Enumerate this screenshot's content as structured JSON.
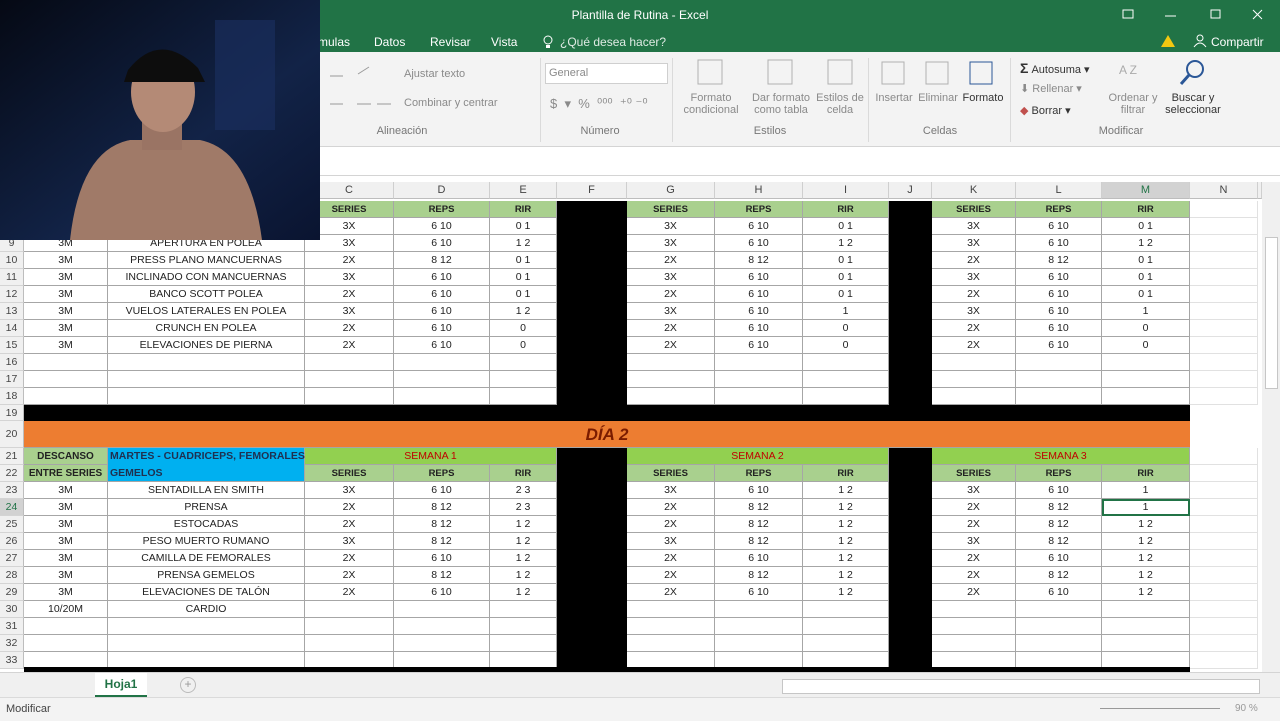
{
  "window": {
    "title": "Plantilla de Rutina - Excel",
    "tabs": [
      "mulas",
      "Datos",
      "Revisar",
      "Vista"
    ],
    "tell_me": "¿Qué desea hacer?",
    "share": "Compartir"
  },
  "ribbon": {
    "alignment": {
      "wrap": "Ajustar texto",
      "merge": "Combinar y centrar",
      "group": "Alineación"
    },
    "number": {
      "format": "General",
      "group": "Número"
    },
    "styles": {
      "conditional": "Formato condicional",
      "table": "Dar formato como tabla",
      "cell": "Estilos de celda",
      "group": "Estilos"
    },
    "cells": {
      "insert": "Insertar",
      "delete": "Eliminar",
      "format": "Formato",
      "group": "Celdas"
    },
    "editing": {
      "autosum": "Autosuma",
      "fill": "Rellenar",
      "clear": "Borrar",
      "sort": "Ordenar y filtrar",
      "find": "Buscar y seleccionar",
      "group": "Modificar"
    }
  },
  "sheet": {
    "columns": [
      "C",
      "D",
      "E",
      "F",
      "G",
      "H",
      "I",
      "J",
      "K",
      "L",
      "M",
      "N"
    ],
    "rows": [
      {
        "kind": "header",
        "cells": [
          null,
          null,
          "SERIES",
          "REPS",
          "RIR",
          "SERIES",
          "REPS",
          "RIR",
          "SERIES",
          "REPS",
          "RIR"
        ]
      },
      {
        "kind": "data",
        "cells": [
          null,
          null,
          "3X",
          "6 10",
          "0 1",
          "3X",
          "6 10",
          "0 1",
          "3X",
          "6 10",
          "0 1"
        ]
      },
      {
        "kind": "data",
        "number": 9,
        "cells": [
          "3M",
          "APERTURA EN POLEA",
          "3X",
          "6 10",
          "1 2",
          "3X",
          "6 10",
          "1 2",
          "3X",
          "6 10",
          "1 2"
        ]
      },
      {
        "kind": "data",
        "number": 10,
        "cells": [
          "3M",
          "PRESS PLANO MANCUERNAS",
          "2X",
          "8 12",
          "0 1",
          "2X",
          "8 12",
          "0 1",
          "2X",
          "8 12",
          "0 1"
        ]
      },
      {
        "kind": "data",
        "number": 11,
        "cells": [
          "3M",
          "INCLINADO CON MANCUERNAS",
          "3X",
          "6 10",
          "0 1",
          "3X",
          "6 10",
          "0 1",
          "3X",
          "6 10",
          "0 1"
        ]
      },
      {
        "kind": "data",
        "number": 12,
        "cells": [
          "3M",
          "BANCO SCOTT POLEA",
          "2X",
          "6 10",
          "0 1",
          "2X",
          "6 10",
          "0 1",
          "2X",
          "6 10",
          "0 1"
        ]
      },
      {
        "kind": "data",
        "number": 13,
        "cells": [
          "3M",
          "VUELOS LATERALES EN POLEA",
          "3X",
          "6 10",
          "1 2",
          "3X",
          "6 10",
          "1",
          "3X",
          "6 10",
          "1"
        ]
      },
      {
        "kind": "data",
        "number": 14,
        "cells": [
          "3M",
          "CRUNCH EN POLEA",
          "2X",
          "6 10",
          "0",
          "2X",
          "6 10",
          "0",
          "2X",
          "6 10",
          "0"
        ]
      },
      {
        "kind": "data",
        "number": 15,
        "cells": [
          "3M",
          "ELEVACIONES DE PIERNA",
          "2X",
          "6 10",
          "0",
          "2X",
          "6 10",
          "0",
          "2X",
          "6 10",
          "0"
        ]
      },
      {
        "kind": "data",
        "number": 16,
        "cells": []
      },
      {
        "kind": "data",
        "number": 17,
        "cells": []
      },
      {
        "kind": "data",
        "number": 18,
        "cells": []
      },
      {
        "kind": "black",
        "number": 19
      },
      {
        "kind": "day",
        "number": 20,
        "title": "DÍA 2"
      },
      {
        "kind": "week",
        "number": 21,
        "cells": [
          "DESCANSO",
          "MARTES - CUADRICEPS, FEMORALES",
          "SEMANA 1",
          "SEMANA 2",
          "SEMANA 3"
        ]
      },
      {
        "kind": "header",
        "number": 22,
        "cells": [
          "ENTRE SERIES",
          "GEMELOS",
          "SERIES",
          "REPS",
          "RIR",
          "SERIES",
          "REPS",
          "RIR",
          "SERIES",
          "REPS",
          "RIR"
        ]
      },
      {
        "kind": "data",
        "number": 23,
        "cells": [
          "3M",
          "SENTADILLA EN SMITH",
          "3X",
          "6 10",
          "2 3",
          "3X",
          "6 10",
          "1 2",
          "3X",
          "6 10",
          "1"
        ]
      },
      {
        "kind": "data",
        "number": 24,
        "cells": [
          "3M",
          "PRENSA",
          "2X",
          "8 12",
          "2 3",
          "2X",
          "8 12",
          "1 2",
          "2X",
          "8 12",
          "1"
        ]
      },
      {
        "kind": "data",
        "number": 25,
        "cells": [
          "3M",
          "ESTOCADAS",
          "2X",
          "8 12",
          "1 2",
          "2X",
          "8 12",
          "1 2",
          "2X",
          "8 12",
          "1 2"
        ]
      },
      {
        "kind": "data",
        "number": 26,
        "cells": [
          "3M",
          "PESO MUERTO RUMANO",
          "3X",
          "8 12",
          "1 2",
          "3X",
          "8 12",
          "1 2",
          "3X",
          "8 12",
          "1 2"
        ]
      },
      {
        "kind": "data",
        "number": 27,
        "cells": [
          "3M",
          "CAMILLA DE FEMORALES",
          "2X",
          "6 10",
          "1 2",
          "2X",
          "6 10",
          "1 2",
          "2X",
          "6 10",
          "1 2"
        ]
      },
      {
        "kind": "data",
        "number": 28,
        "cells": [
          "3M",
          "PRENSA GEMELOS",
          "2X",
          "8 12",
          "1 2",
          "2X",
          "8 12",
          "1 2",
          "2X",
          "8 12",
          "1 2"
        ]
      },
      {
        "kind": "data",
        "number": 29,
        "cells": [
          "3M",
          "ELEVACIONES DE TALÓN",
          "2X",
          "6 10",
          "1 2",
          "2X",
          "6 10",
          "1 2",
          "2X",
          "6 10",
          "1 2"
        ]
      },
      {
        "kind": "data",
        "number": 30,
        "cells": [
          "10/20M",
          "CARDIO"
        ]
      },
      {
        "kind": "data",
        "number": 31,
        "cells": []
      },
      {
        "kind": "data",
        "number": 32,
        "cells": []
      },
      {
        "kind": "data",
        "number": 33,
        "cells": []
      }
    ],
    "tab": "Hoja1"
  },
  "status": {
    "mode": "Modificar",
    "zoom": "90 %"
  }
}
